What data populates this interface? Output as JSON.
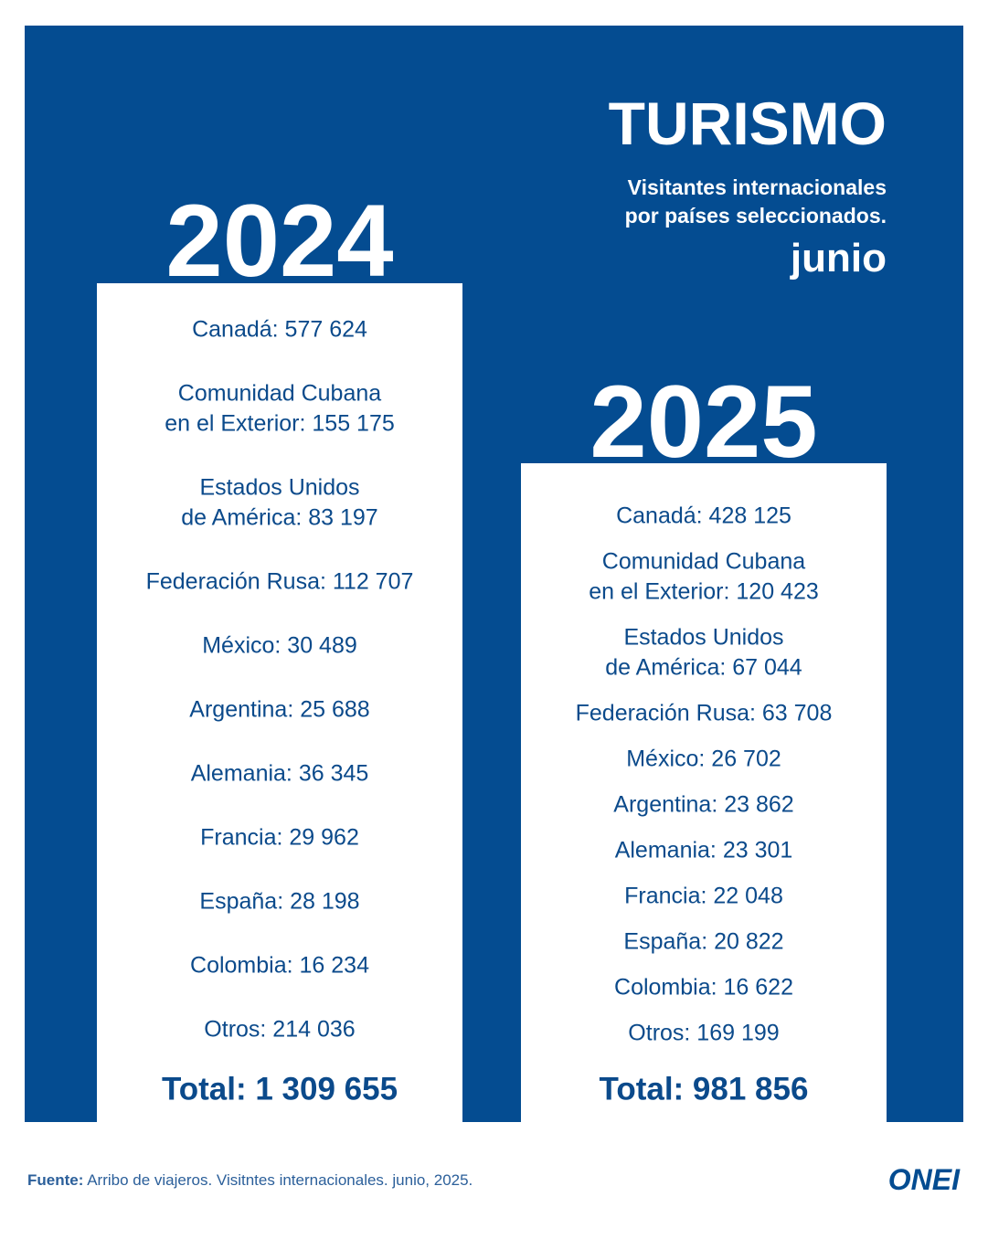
{
  "header": {
    "title": "TURISMO",
    "subtitle": [
      "Visitantes internacionales",
      "por países seleccionados."
    ],
    "month": "junio"
  },
  "columns": [
    {
      "year": "2024",
      "items": [
        [
          "Canadá: 577 624"
        ],
        [
          "Comunidad Cubana",
          "en el Exterior: 155 175"
        ],
        [
          "Estados Unidos",
          "de América: 83 197"
        ],
        [
          "Federación Rusa: 112 707"
        ],
        [
          "México: 30 489"
        ],
        [
          "Argentina: 25 688"
        ],
        [
          "Alemania: 36 345"
        ],
        [
          "Francia: 29 962"
        ],
        [
          "España: 28 198"
        ],
        [
          "Colombia: 16 234"
        ],
        [
          "Otros: 214 036"
        ]
      ],
      "total": "Total: 1 309 655"
    },
    {
      "year": "2025",
      "items": [
        [
          "Canadá: 428 125"
        ],
        [
          "Comunidad Cubana",
          "en el Exterior: 120 423"
        ],
        [
          "Estados Unidos",
          "de América: 67 044"
        ],
        [
          "Federación Rusa: 63 708"
        ],
        [
          "México: 26 702"
        ],
        [
          "Argentina: 23 862"
        ],
        [
          "Alemania: 23 301"
        ],
        [
          "Francia: 22 048"
        ],
        [
          "España: 20 822"
        ],
        [
          "Colombia: 16 622"
        ],
        [
          "Otros: 169 199"
        ]
      ],
      "total": "Total: 981 856"
    }
  ],
  "footer": {
    "label": "Fuente:",
    "text": "Arribo de viajeros. Visitntes internacionales. junio, 2025.",
    "logo": "ONEI"
  }
}
